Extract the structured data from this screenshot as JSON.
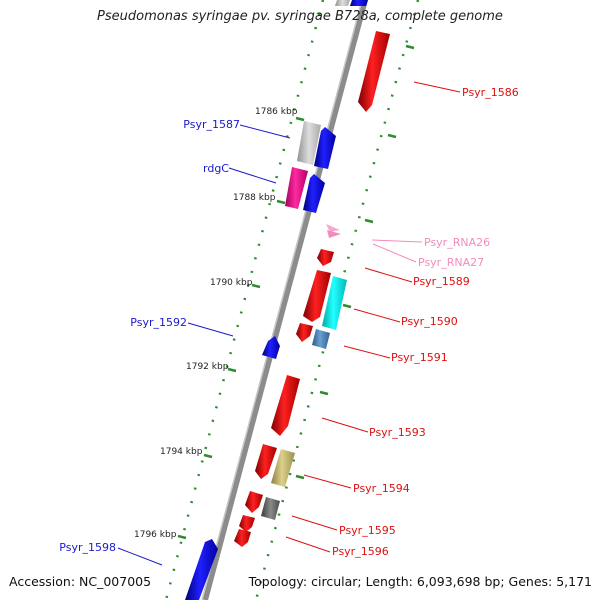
{
  "title": "Pseudomonas syringae pv. syringae B728a, complete genome",
  "accession": "Accession: NC_007005",
  "topology": "Topology: circular; Length: 6,093,698 bp; Genes: 5,171",
  "ticks": [
    {
      "label": "1786 kbp"
    },
    {
      "label": "1788 kbp"
    },
    {
      "label": "1790 kbp"
    },
    {
      "label": "1792 kbp"
    },
    {
      "label": "1794 kbp"
    },
    {
      "label": "1796 kbp"
    }
  ],
  "labels_left": [
    {
      "text": "Psyr_1587",
      "color": "#1a1acc"
    },
    {
      "text": "rdgC",
      "color": "#1a1acc"
    },
    {
      "text": "Psyr_1592",
      "color": "#1a1acc"
    },
    {
      "text": "Psyr_1598",
      "color": "#1a1acc"
    }
  ],
  "labels_right": [
    {
      "text": "Psyr_1586",
      "color": "#dd1111"
    },
    {
      "text": "Psyr_RNA26",
      "color": "#f28cbc"
    },
    {
      "text": "Psyr_RNA27",
      "color": "#f28cbc"
    },
    {
      "text": "Psyr_1589",
      "color": "#dd1111"
    },
    {
      "text": "Psyr_1590",
      "color": "#dd1111"
    },
    {
      "text": "Psyr_1591",
      "color": "#dd1111"
    },
    {
      "text": "Psyr_1593",
      "color": "#dd1111"
    },
    {
      "text": "Psyr_1594",
      "color": "#dd1111"
    },
    {
      "text": "Psyr_1595",
      "color": "#dd1111"
    },
    {
      "text": "Psyr_1596",
      "color": "#dd1111"
    }
  ],
  "colors": {
    "backbone": "#8c8c8c",
    "tick": "#2e8b2e",
    "cds_forward": "#ee1111",
    "cds_reverse": "#1111ee",
    "rna": "#f7a8cf"
  }
}
